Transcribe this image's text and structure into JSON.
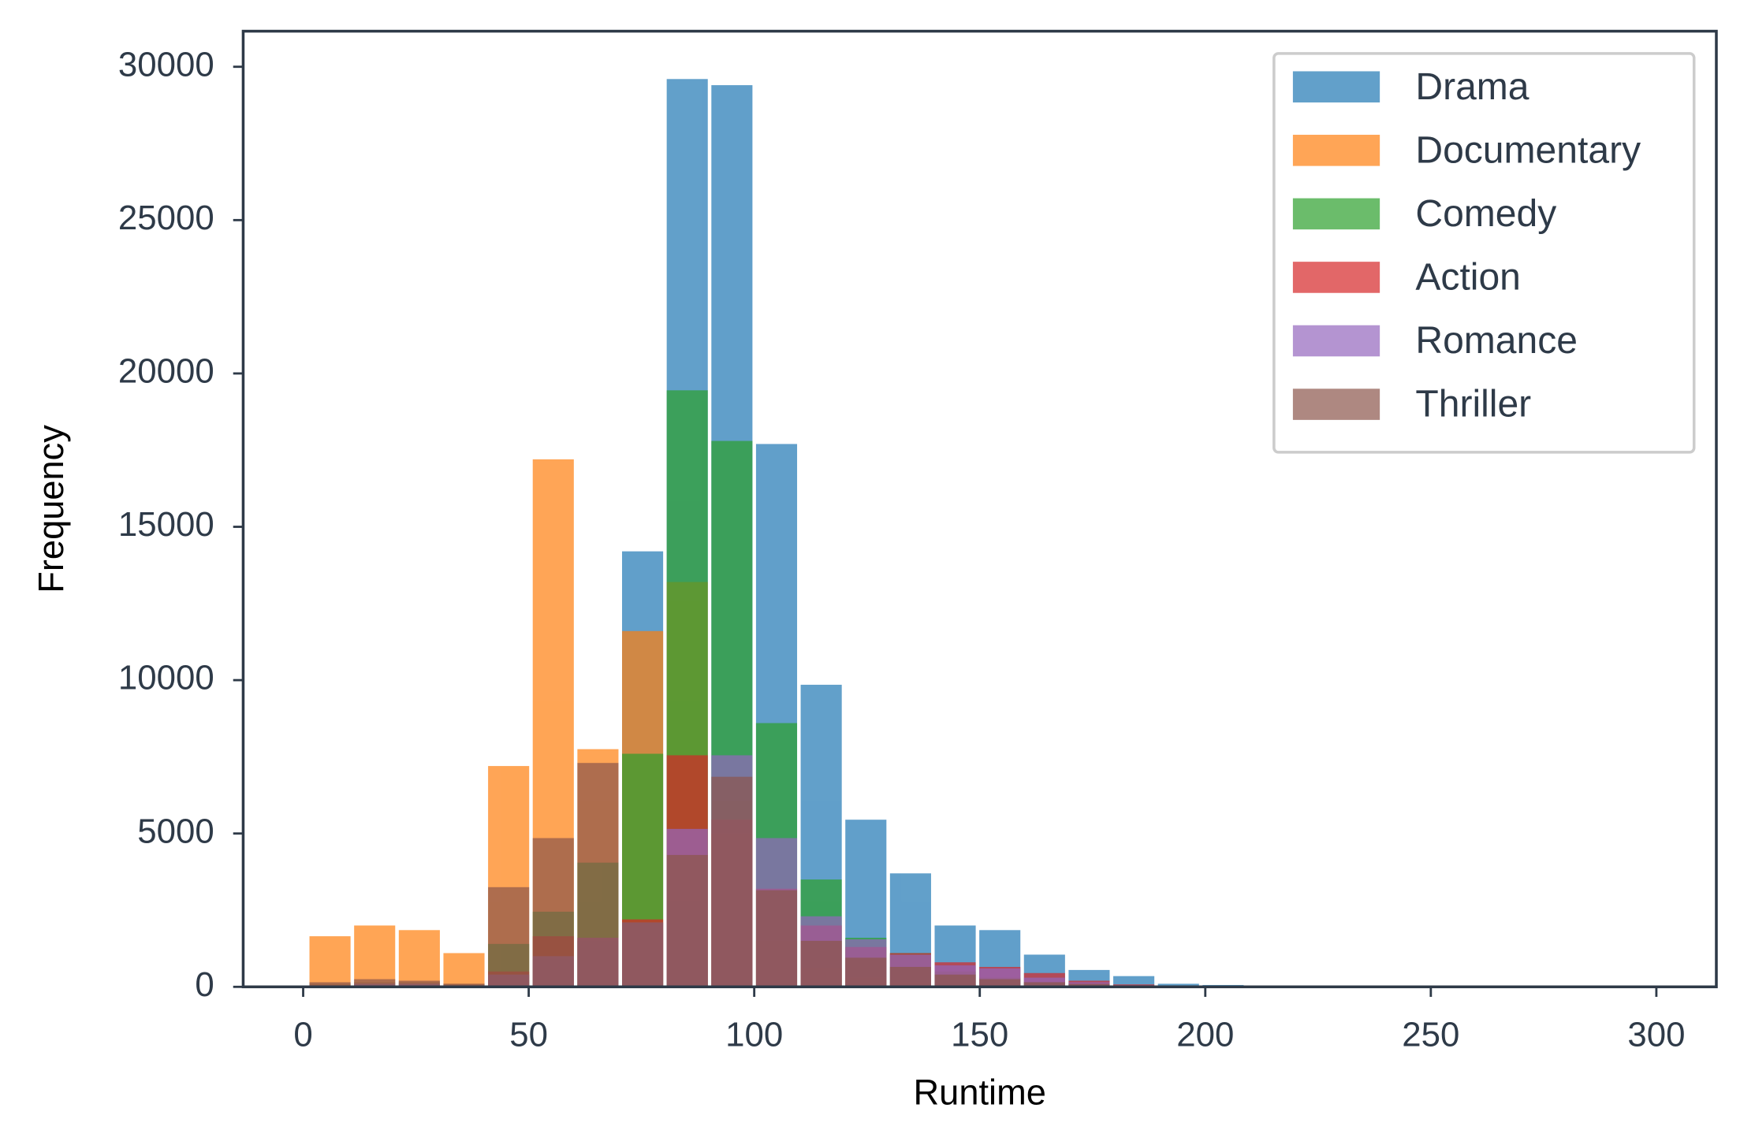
{
  "chart_data": {
    "type": "histogram",
    "x_label": "Runtime",
    "y_label": "Frequency",
    "bins": [
      1,
      10.9,
      20.8,
      30.7,
      40.6,
      50.5,
      60.4,
      70.3,
      80.2,
      90.1,
      100,
      109.9,
      119.8,
      129.7,
      139.6,
      149.5,
      159.4,
      169.3,
      179.2,
      189.1,
      199,
      208.9,
      218.8,
      228.7,
      238.6,
      248.5,
      258.4,
      268.3,
      278.2,
      288.1,
      298
    ],
    "series": [
      {
        "name": "Drama",
        "color": "#1f77b4",
        "values": [
          100,
          150,
          150,
          100,
          400,
          900,
          1500,
          14200,
          29600,
          29400,
          17700,
          9850,
          5450,
          3700,
          2000,
          1850,
          1050,
          550,
          350,
          100,
          60,
          20,
          10,
          5,
          0,
          0,
          0,
          0,
          0,
          0
        ]
      },
      {
        "name": "Documentary",
        "color": "#ff7f0e",
        "values": [
          1650,
          2000,
          1850,
          1100,
          7200,
          17200,
          7750,
          11600,
          13200,
          5000,
          1500,
          600,
          300,
          150,
          80,
          50,
          30,
          20,
          10,
          0,
          0,
          0,
          0,
          0,
          0,
          0,
          0,
          0,
          0,
          0
        ]
      },
      {
        "name": "Comedy",
        "color": "#2ca02c",
        "values": [
          0,
          0,
          0,
          0,
          1400,
          2450,
          4050,
          7600,
          19450,
          17800,
          8600,
          3500,
          1600,
          1100,
          500,
          300,
          150,
          80,
          40,
          20,
          10,
          0,
          0,
          0,
          0,
          0,
          0,
          0,
          0,
          0
        ]
      },
      {
        "name": "Action",
        "color": "#d62728",
        "values": [
          0,
          0,
          0,
          0,
          500,
          1650,
          1600,
          2200,
          7550,
          5450,
          3200,
          2000,
          1300,
          1100,
          800,
          650,
          450,
          200,
          80,
          40,
          20,
          0,
          0,
          0,
          0,
          0,
          0,
          0,
          0,
          0
        ]
      },
      {
        "name": "Romance",
        "color": "#9467bd",
        "values": [
          50,
          100,
          100,
          50,
          400,
          1000,
          1600,
          2100,
          5150,
          7550,
          4850,
          2300,
          1550,
          1050,
          700,
          600,
          300,
          150,
          50,
          20,
          10,
          0,
          0,
          0,
          0,
          0,
          0,
          0,
          0,
          0
        ]
      },
      {
        "name": "Thriller",
        "color": "#8c564b",
        "values": [
          150,
          250,
          200,
          100,
          3250,
          4850,
          7300,
          2100,
          4300,
          6850,
          3150,
          1500,
          950,
          650,
          400,
          250,
          150,
          100,
          50,
          20,
          10,
          0,
          0,
          0,
          0,
          0,
          0,
          0,
          0,
          0
        ]
      }
    ],
    "alpha": 0.7,
    "xlim": [
      -13.3,
      313.3
    ],
    "ylim": [
      0,
      31160
    ],
    "xticks": [
      0,
      50,
      100,
      150,
      200,
      250,
      300
    ],
    "yticks": [
      0,
      5000,
      10000,
      15000,
      20000,
      25000,
      30000
    ],
    "legend": "upper right"
  }
}
